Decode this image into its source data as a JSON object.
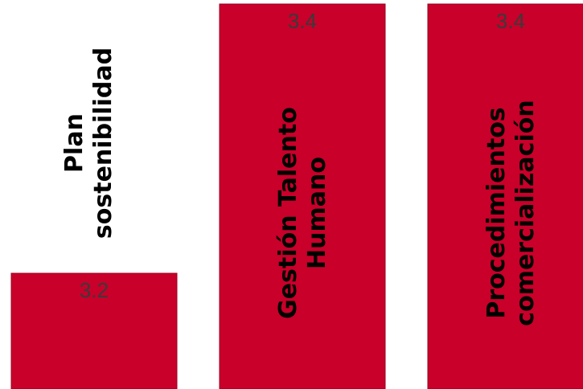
{
  "chart_data": {
    "type": "bar",
    "categories": [
      [
        "Plan",
        "sostenibilidad"
      ],
      [
        "Gestión Talento",
        "Humano"
      ],
      [
        "Procedimientos",
        "comercialización"
      ]
    ],
    "values": [
      3.2,
      3.4,
      3.4
    ],
    "value_labels": [
      "3.2",
      "3.4",
      "3.4"
    ],
    "bar_color": "#C8002A",
    "category_label_colors": [
      "#000000",
      "#000000",
      "#000000"
    ],
    "title": "",
    "xlabel": "",
    "ylabel": ""
  }
}
